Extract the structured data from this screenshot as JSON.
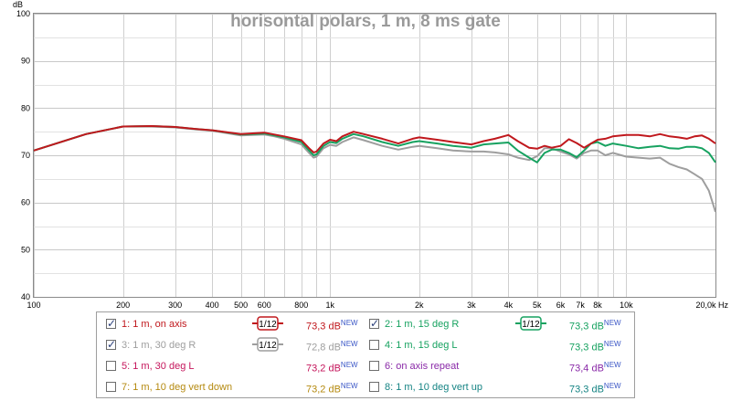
{
  "chart_data": {
    "type": "line",
    "title": "horisontal polars, 1 m, 8 ms gate",
    "ylabel": "dB",
    "xlabel": "Hz",
    "x_scale": "log",
    "xlim": [
      100,
      20000
    ],
    "ylim": [
      40,
      100
    ],
    "grid": true,
    "y_ticks": [
      "40",
      "50",
      "60",
      "70",
      "80",
      "90",
      "100"
    ],
    "x_ticks": [
      {
        "f": 100,
        "label": "100"
      },
      {
        "f": 200,
        "label": "200"
      },
      {
        "f": 300,
        "label": "300"
      },
      {
        "f": 400,
        "label": "400"
      },
      {
        "f": 500,
        "label": "500"
      },
      {
        "f": 600,
        "label": "600"
      },
      {
        "f": 800,
        "label": "800"
      },
      {
        "f": 1000,
        "label": "1k"
      },
      {
        "f": 2000,
        "label": "2k"
      },
      {
        "f": 3000,
        "label": "3k"
      },
      {
        "f": 4000,
        "label": "4k"
      },
      {
        "f": 5000,
        "label": "5k"
      },
      {
        "f": 6000,
        "label": "6k"
      },
      {
        "f": 7000,
        "label": "7k"
      },
      {
        "f": 8000,
        "label": "8k"
      },
      {
        "f": 10000,
        "label": "10k"
      },
      {
        "f": 20000,
        "label": "20,0k Hz"
      }
    ],
    "series": [
      {
        "name": "1: 1 m, on axis",
        "color": "#c0181d",
        "x": [
          100,
          150,
          200,
          250,
          300,
          350,
          400,
          500,
          600,
          650,
          700,
          800,
          850,
          880,
          900,
          950,
          1000,
          1050,
          1100,
          1200,
          1300,
          1500,
          1700,
          1900,
          2000,
          2300,
          2600,
          3000,
          3300,
          3600,
          4000,
          4300,
          4700,
          5000,
          5300,
          5600,
          6000,
          6400,
          6800,
          7200,
          7600,
          8000,
          8500,
          9000,
          10000,
          11000,
          12000,
          13000,
          14000,
          15000,
          16000,
          17000,
          18000,
          19000,
          20000
        ],
        "y": [
          71,
          74.5,
          76.1,
          76.2,
          76,
          75.6,
          75.3,
          74.5,
          74.8,
          74.4,
          74.0,
          73.2,
          71.5,
          70.6,
          70.8,
          72.5,
          73.3,
          73.0,
          74.0,
          75.0,
          74.5,
          73.5,
          72.5,
          73.5,
          73.8,
          73.3,
          72.8,
          72.3,
          73.0,
          73.5,
          74.3,
          73.0,
          71.6,
          71.4,
          72.0,
          71.6,
          72.0,
          73.4,
          72.6,
          71.6,
          72.5,
          73.3,
          73.5,
          74.0,
          74.3,
          74.3,
          74.0,
          74.5,
          74.0,
          73.8,
          73.5,
          74.0,
          74.2,
          73.5,
          72.5
        ]
      },
      {
        "name": "2: 1 m, 15 deg R",
        "color": "#17a260",
        "x": [
          100,
          150,
          200,
          250,
          300,
          350,
          400,
          500,
          600,
          650,
          700,
          800,
          850,
          880,
          900,
          950,
          1000,
          1050,
          1100,
          1200,
          1300,
          1500,
          1700,
          1900,
          2000,
          2300,
          2600,
          3000,
          3300,
          3600,
          4000,
          4300,
          4700,
          5000,
          5300,
          5600,
          6000,
          6400,
          6800,
          7200,
          7600,
          8000,
          8500,
          9000,
          10000,
          11000,
          12000,
          13000,
          14000,
          15000,
          16000,
          17000,
          18000,
          19000,
          20000
        ],
        "y": [
          71,
          74.5,
          76.1,
          76.2,
          76,
          75.6,
          75.3,
          74.4,
          74.6,
          74.2,
          73.8,
          72.8,
          71.0,
          70.0,
          70.2,
          72.0,
          72.8,
          72.6,
          73.5,
          74.5,
          74.0,
          72.8,
          72.0,
          72.8,
          73.0,
          72.5,
          72.0,
          71.6,
          72.3,
          72.5,
          72.7,
          71.0,
          69.5,
          68.5,
          70.5,
          71.2,
          71.2,
          70.5,
          69.6,
          71.0,
          72.5,
          72.8,
          72.0,
          72.5,
          72.0,
          71.5,
          71.8,
          72.0,
          71.5,
          71.4,
          71.8,
          71.8,
          71.5,
          70.5,
          68.5
        ]
      },
      {
        "name": "3: 1 m, 30 deg R",
        "color": "#9e9e9e",
        "x": [
          100,
          150,
          200,
          250,
          300,
          350,
          400,
          500,
          600,
          650,
          700,
          800,
          850,
          880,
          900,
          950,
          1000,
          1050,
          1100,
          1200,
          1300,
          1500,
          1700,
          1900,
          2000,
          2300,
          2600,
          3000,
          3300,
          3600,
          4000,
          4300,
          4700,
          5000,
          5300,
          5600,
          6000,
          6400,
          6800,
          7200,
          7600,
          8000,
          8500,
          9000,
          10000,
          11000,
          12000,
          13000,
          14000,
          15000,
          16000,
          17000,
          18000,
          19000,
          20000
        ],
        "y": [
          71,
          74.5,
          76.1,
          76.1,
          75.9,
          75.5,
          75.2,
          74.2,
          74.4,
          74.0,
          73.5,
          72.3,
          70.5,
          69.5,
          69.7,
          71.5,
          72.2,
          72.0,
          72.8,
          73.8,
          73.2,
          72.0,
          71.2,
          71.8,
          72.0,
          71.5,
          71.0,
          70.8,
          70.8,
          70.6,
          70.2,
          69.5,
          69.0,
          69.8,
          71.5,
          71.5,
          70.8,
          70.2,
          69.3,
          70.5,
          71.0,
          71.0,
          70.0,
          70.5,
          69.7,
          69.5,
          69.3,
          69.5,
          68.2,
          67.5,
          67.0,
          66.0,
          65.0,
          62.5,
          58.0
        ]
      }
    ]
  },
  "legend": {
    "items": [
      {
        "label": "1: 1 m, on axis",
        "value": "73,3 dB",
        "checked": true,
        "color": "#c0181d",
        "smoothing": "1/12"
      },
      {
        "label": "2: 1 m, 15 deg R",
        "value": "73,3 dB",
        "checked": true,
        "color": "#17a260",
        "smoothing": "1/12"
      },
      {
        "label": "3: 1 m, 30 deg R",
        "value": "72,8 dB",
        "checked": true,
        "color": "#9e9e9e",
        "smoothing": "1/12"
      },
      {
        "label": "4: 1 m, 15 deg L",
        "value": "73,3 dB",
        "checked": false,
        "color": "#17a260"
      },
      {
        "label": "5: 1 m, 30 deg L",
        "value": "73,2 dB",
        "checked": false,
        "color": "#c5165c"
      },
      {
        "label": "6: on axis repeat",
        "value": "73,4 dB",
        "checked": false,
        "color": "#8a2aa8"
      },
      {
        "label": "7: 1 m, 10 deg vert down",
        "value": "73,2 dB",
        "checked": false,
        "color": "#b58a10"
      },
      {
        "label": "8: 1 m, 10 deg vert up",
        "value": "73,3 dB",
        "checked": false,
        "color": "#168484"
      }
    ],
    "new_badge": "NEW"
  }
}
